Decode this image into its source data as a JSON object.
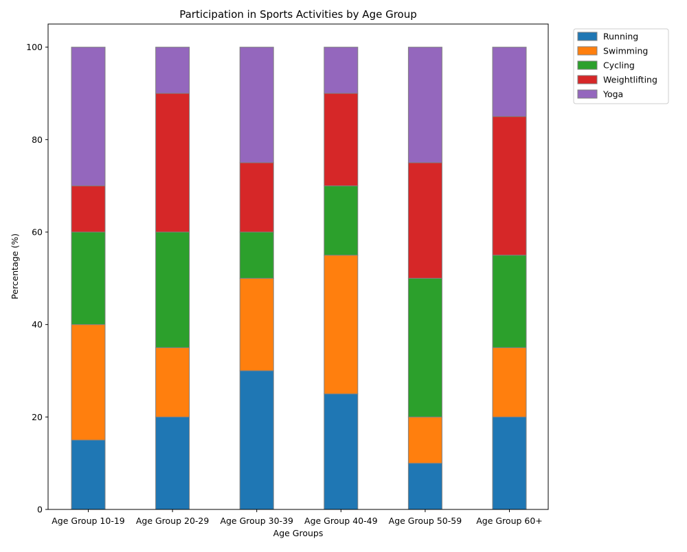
{
  "chart_data": {
    "type": "bar",
    "stacked": true,
    "title": "Participation in Sports Activities by Age Group",
    "xlabel": "Age Groups",
    "ylabel": "Percentage (%)",
    "ylim": [
      0,
      105
    ],
    "yticks": [
      0,
      20,
      40,
      60,
      80,
      100
    ],
    "grid": false,
    "legend_position": "outside top-right",
    "categories": [
      "Age Group 10-19",
      "Age Group 20-29",
      "Age Group 30-39",
      "Age Group 40-49",
      "Age Group 50-59",
      "Age Group 60+"
    ],
    "series": [
      {
        "name": "Running",
        "color": "#1f77b4",
        "values": [
          15,
          20,
          30,
          25,
          10,
          20
        ]
      },
      {
        "name": "Swimming",
        "color": "#ff7f0e",
        "values": [
          25,
          15,
          20,
          30,
          10,
          15
        ]
      },
      {
        "name": "Cycling",
        "color": "#2ca02c",
        "values": [
          20,
          25,
          10,
          15,
          30,
          20
        ]
      },
      {
        "name": "Weightlifting",
        "color": "#d62728",
        "values": [
          10,
          30,
          15,
          20,
          25,
          30
        ]
      },
      {
        "name": "Yoga",
        "color": "#9467bd",
        "values": [
          30,
          10,
          25,
          10,
          25,
          15
        ]
      }
    ]
  }
}
